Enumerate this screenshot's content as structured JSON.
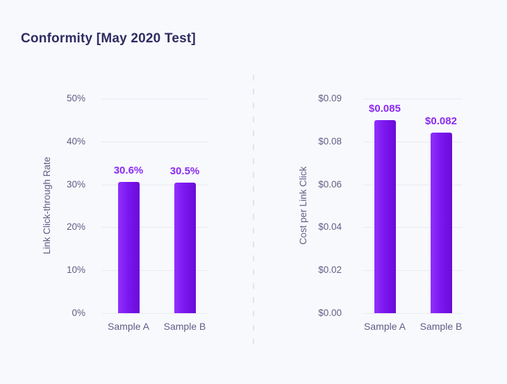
{
  "header": {
    "title": "Conformity [May 2020 Test]"
  },
  "colors": {
    "background": "#f8f9fd",
    "title_text": "#2f2c62",
    "axis_text": "#5f5e85",
    "value_text": "#8a2bf0",
    "gridline": "#e8eaf0",
    "divider": "#e2e4eb",
    "bar_start": "#9030fe",
    "bar_end": "#6a0ad9"
  },
  "chart_data": [
    {
      "type": "bar",
      "title": "",
      "ylabel": "Link Click-through Rate",
      "xlabel": "",
      "categories": [
        "Sample A",
        "Sample B"
      ],
      "values": [
        30.6,
        30.5
      ],
      "value_labels": [
        "30.6%",
        "30.5%"
      ],
      "yticks": {
        "labels": [
          "0%",
          "10%",
          "20%",
          "30%",
          "40%",
          "50%"
        ],
        "values": [
          0,
          10,
          20,
          30,
          40,
          50
        ]
      },
      "ylim": [
        0,
        50
      ],
      "grid": true,
      "legend": false
    },
    {
      "type": "bar",
      "title": "",
      "ylabel": "Cost per Link Click",
      "xlabel": "",
      "categories": [
        "Sample A",
        "Sample B"
      ],
      "values": [
        0.085,
        0.082
      ],
      "value_labels": [
        "$0.085",
        "$0.082"
      ],
      "yticks": {
        "labels": [
          "$0.00",
          "$0.02",
          "$0.04",
          "$0.06",
          "$0.08",
          "$0.09"
        ],
        "values": [
          0,
          0.02,
          0.04,
          0.06,
          0.08,
          0.09
        ]
      },
      "ylim": [
        0,
        0.09
      ],
      "grid": true,
      "legend": false
    }
  ]
}
